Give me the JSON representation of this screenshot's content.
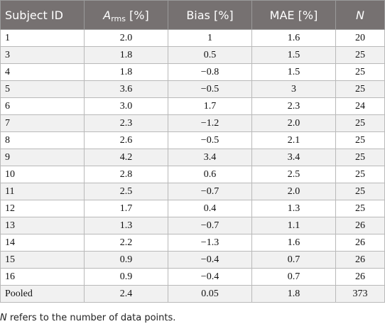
{
  "table": {
    "headers": {
      "subject_id": "Subject ID",
      "arms_symbol": "A",
      "arms_sub": "rms",
      "arms_unit": " [%]",
      "bias": "Bias [%]",
      "mae": "MAE [%]",
      "n": "N"
    },
    "rows": [
      [
        "1",
        "2.0",
        "1",
        "1.6",
        "20"
      ],
      [
        "3",
        "1.8",
        "0.5",
        "1.5",
        "25"
      ],
      [
        "4",
        "1.8",
        "−0.8",
        "1.5",
        "25"
      ],
      [
        "5",
        "3.6",
        "−0.5",
        "3",
        "25"
      ],
      [
        "6",
        "3.0",
        "1.7",
        "2.3",
        "24"
      ],
      [
        "7",
        "2.3",
        "−1.2",
        "2.0",
        "25"
      ],
      [
        "8",
        "2.6",
        "−0.5",
        "2.1",
        "25"
      ],
      [
        "9",
        "4.2",
        "3.4",
        "3.4",
        "25"
      ],
      [
        "10",
        "2.8",
        "0.6",
        "2.5",
        "25"
      ],
      [
        "11",
        "2.5",
        "−0.7",
        "2.0",
        "25"
      ],
      [
        "12",
        "1.7",
        "0.4",
        "1.3",
        "25"
      ],
      [
        "13",
        "1.3",
        "−0.7",
        "1.1",
        "26"
      ],
      [
        "14",
        "2.2",
        "−1.3",
        "1.6",
        "26"
      ],
      [
        "15",
        "0.9",
        "−0.4",
        "0.7",
        "26"
      ],
      [
        "16",
        "0.9",
        "−0.4",
        "0.7",
        "26"
      ],
      [
        "Pooled",
        "2.4",
        "0.05",
        "1.8",
        "373"
      ]
    ]
  },
  "footnote": {
    "symbol": "N",
    "text": " refers to the number of data points."
  },
  "colors": {
    "header_bg": "#767171",
    "header_text": "#ffffff",
    "row_alt_bg": "#f1f1f1",
    "border": "#b9b9b9"
  }
}
